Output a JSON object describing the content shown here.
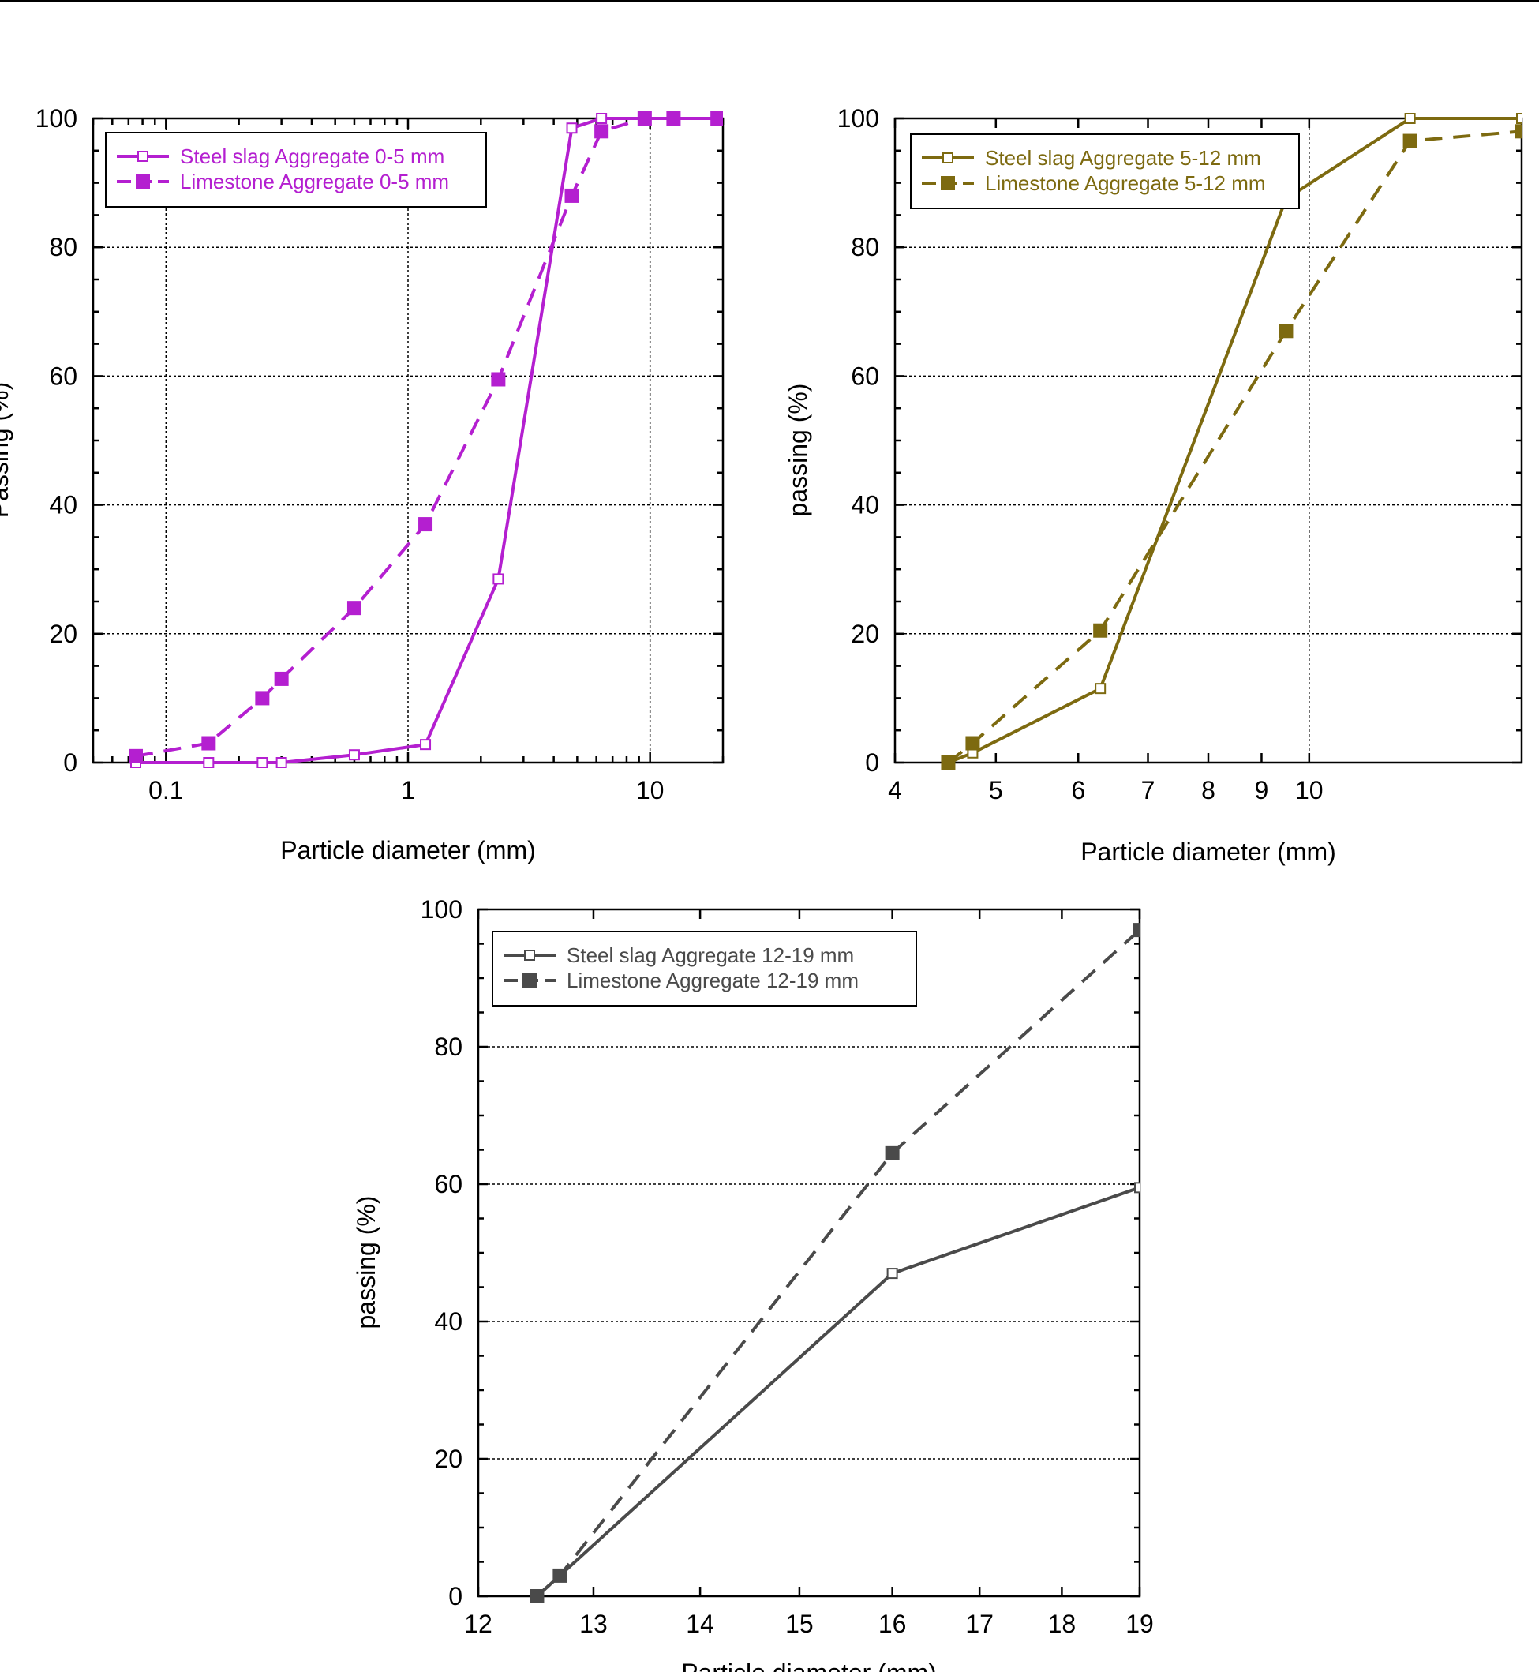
{
  "chart_data": [
    {
      "type": "line",
      "xscale": "log",
      "xlim": [
        0.05,
        20
      ],
      "ylim": [
        0,
        100
      ],
      "xticks": [
        0.1,
        1,
        10
      ],
      "xtick_labels": [
        "0.1",
        "1",
        "10"
      ],
      "yticks": [
        0,
        20,
        40,
        60,
        80,
        100
      ],
      "ytick_labels": [
        "0",
        "20",
        "40",
        "60",
        "80",
        "100"
      ],
      "xlabel": "Particle diameter (mm)",
      "ylabel": "Passing (%)",
      "grid": true,
      "legend_position": "top-left",
      "color": "#b41fd0",
      "series": [
        {
          "name": "Steel slag Aggregate 0-5 mm",
          "style": "solid",
          "marker": "open-square",
          "x": [
            0.075,
            0.15,
            0.25,
            0.3,
            0.6,
            1.18,
            2.36,
            4.75,
            6.3,
            9.5,
            12.5,
            19
          ],
          "y": [
            0,
            0,
            0,
            0,
            1.2,
            2.8,
            28.5,
            98.5,
            100,
            100,
            100,
            100
          ]
        },
        {
          "name": "Limestone Aggregate 0-5 mm",
          "style": "dashed",
          "marker": "filled-square",
          "x": [
            0.075,
            0.15,
            0.25,
            0.3,
            0.6,
            1.18,
            2.36,
            4.75,
            6.3,
            9.5,
            12.5,
            19
          ],
          "y": [
            1,
            3,
            10,
            13,
            24,
            37,
            59.5,
            88,
            98,
            100,
            100,
            100
          ]
        }
      ]
    },
    {
      "type": "line",
      "xscale": "log",
      "xlim": [
        4,
        16
      ],
      "ylim": [
        0,
        100
      ],
      "xticks": [
        4,
        5,
        6,
        7,
        8,
        9,
        10
      ],
      "xtick_labels": [
        "4",
        "5",
        "6",
        "7",
        "8",
        "9",
        "10"
      ],
      "yticks": [
        0,
        20,
        40,
        60,
        80,
        100
      ],
      "ytick_labels": [
        "0",
        "20",
        "40",
        "60",
        "80",
        "100"
      ],
      "xlabel": "Particle diameter (mm)",
      "ylabel": "passing (%)",
      "grid": true,
      "legend_position": "top-left",
      "color": "#7d6a10",
      "series": [
        {
          "name": "Steel slag Aggregate 5-12 mm",
          "style": "solid",
          "marker": "open-square",
          "x": [
            4.5,
            4.75,
            6.3,
            9.5,
            12.5,
            16
          ],
          "y": [
            0,
            1.5,
            11.5,
            87.5,
            100,
            100
          ]
        },
        {
          "name": "Limestone Aggregate 5-12 mm",
          "style": "dashed",
          "marker": "filled-square",
          "x": [
            4.5,
            4.75,
            6.3,
            9.5,
            12.5,
            16
          ],
          "y": [
            0,
            3,
            20.5,
            67,
            96.5,
            98
          ]
        }
      ]
    },
    {
      "type": "line",
      "xscale": "log",
      "xlim": [
        12,
        19
      ],
      "ylim": [
        0,
        100
      ],
      "xticks": [
        12,
        13,
        14,
        15,
        16,
        17,
        18,
        19
      ],
      "xtick_labels": [
        "12",
        "13",
        "14",
        "15",
        "16",
        "17",
        "18",
        "19"
      ],
      "yticks": [
        0,
        20,
        40,
        60,
        80,
        100
      ],
      "ytick_labels": [
        "0",
        "20",
        "40",
        "60",
        "80",
        "100"
      ],
      "xlabel": "Particle diameter (mm)",
      "ylabel": "passing (%)",
      "grid": true,
      "legend_position": "top-left",
      "color": "#4a4a4a",
      "series": [
        {
          "name": "Steel slag Aggregate 12-19 mm",
          "style": "solid",
          "marker": "open-square",
          "x": [
            12.5,
            12.7,
            16,
            19
          ],
          "y": [
            0,
            3,
            47,
            59.5
          ]
        },
        {
          "name": "Limestone Aggregate 12-19 mm",
          "style": "dashed",
          "marker": "filled-square",
          "x": [
            12.5,
            12.7,
            16,
            19
          ],
          "y": [
            0,
            3,
            64.5,
            97
          ]
        }
      ]
    }
  ]
}
